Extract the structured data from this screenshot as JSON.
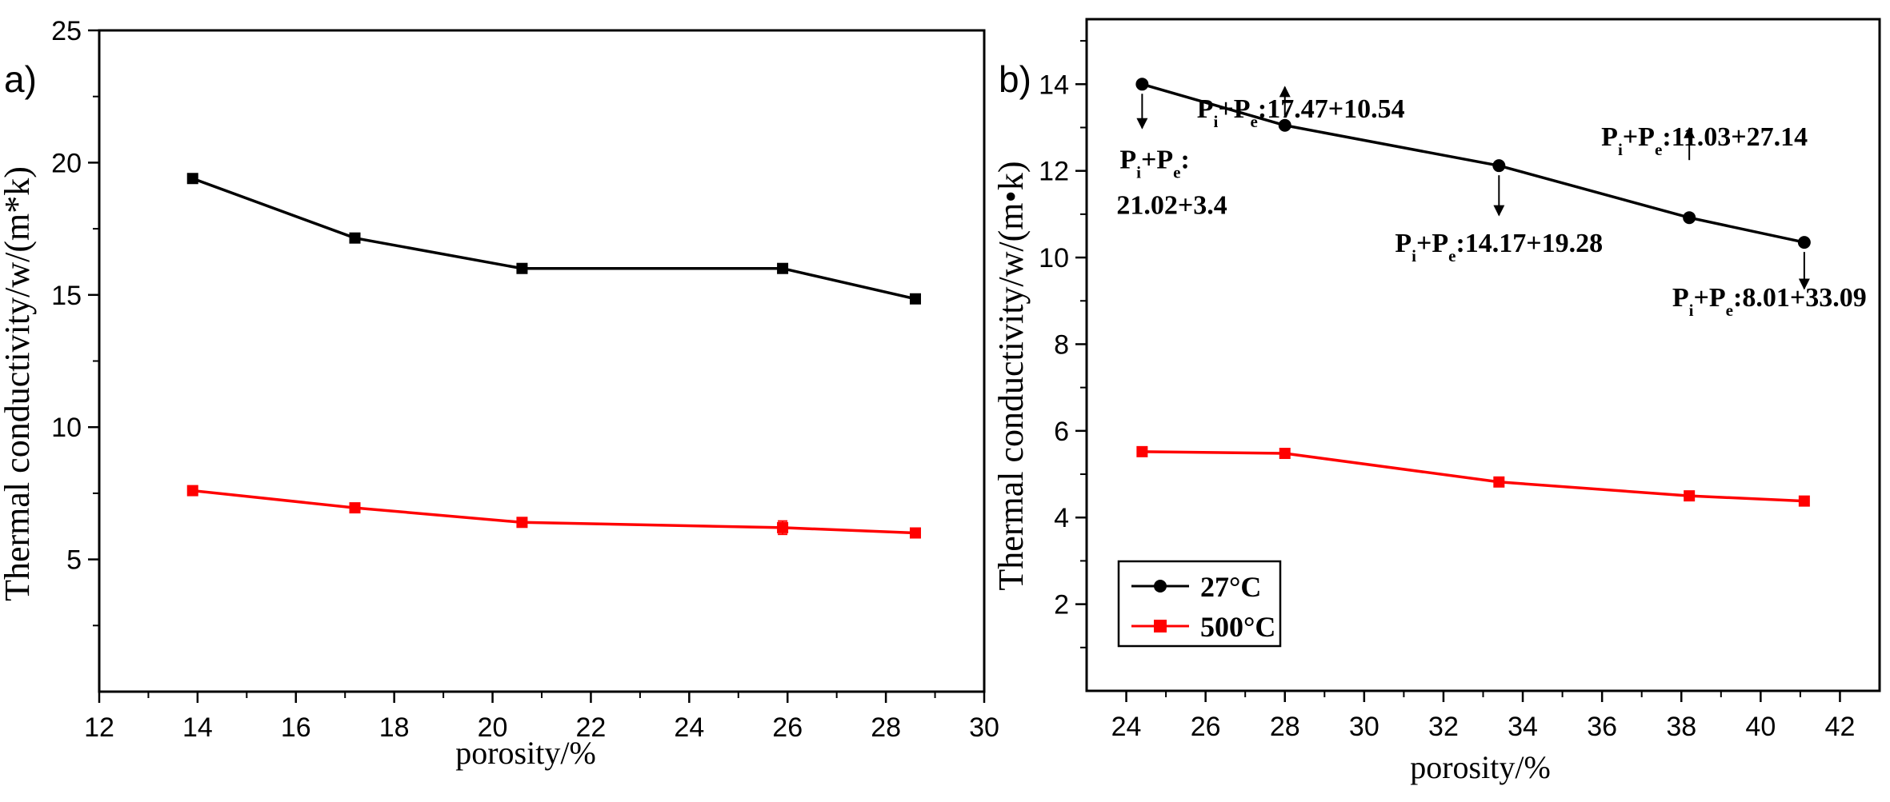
{
  "chart_data": [
    {
      "panel_label": "a)",
      "type": "line",
      "xlabel": "porosity/%",
      "ylabel": "Thermal conductivity/w/(m*k)",
      "xlim": [
        12,
        30
      ],
      "ylim": [
        0,
        25
      ],
      "x_ticks": [
        "12",
        "14",
        "16",
        "18",
        "20",
        "22",
        "24",
        "26",
        "28",
        "30"
      ],
      "y_ticks": [
        "5",
        "10",
        "15",
        "20",
        "25"
      ],
      "grid": false,
      "series": [
        {
          "color": "#000000",
          "marker": "square",
          "x": [
            13.9,
            17.2,
            20.6,
            25.9,
            28.6
          ],
          "y": [
            19.4,
            17.15,
            16.0,
            16.0,
            14.85
          ],
          "err": [
            0.15,
            0.15,
            0.12,
            0.12,
            0.15
          ]
        },
        {
          "color": "#ff0000",
          "marker": "square",
          "x": [
            13.9,
            17.2,
            20.6,
            25.9,
            28.6
          ],
          "y": [
            7.6,
            6.95,
            6.4,
            6.2,
            6.0
          ],
          "err": [
            0.12,
            0.12,
            0.12,
            0.25,
            0.12
          ]
        }
      ]
    },
    {
      "panel_label": "b)",
      "type": "line",
      "xlabel": "porosity/%",
      "ylabel": "Thermal conductivity/w/(m•k)",
      "xlim": [
        23,
        43
      ],
      "ylim": [
        0,
        15.5
      ],
      "x_ticks": [
        "24",
        "26",
        "28",
        "30",
        "32",
        "34",
        "36",
        "38",
        "40",
        "42"
      ],
      "y_ticks": [
        "2",
        "4",
        "6",
        "8",
        "10",
        "12",
        "14"
      ],
      "grid": false,
      "legend_position": "bottom-left",
      "series": [
        {
          "name": "27°C",
          "color": "#000000",
          "marker": "circle",
          "x": [
            24.4,
            28.0,
            33.4,
            38.2,
            41.1
          ],
          "y": [
            14.0,
            13.05,
            12.12,
            10.92,
            10.35
          ]
        },
        {
          "name": "500°C",
          "color": "#ff0000",
          "marker": "square",
          "x": [
            24.4,
            28.0,
            33.4,
            38.2,
            41.1
          ],
          "y": [
            5.52,
            5.48,
            4.82,
            4.5,
            4.38
          ]
        }
      ],
      "annotations": [
        {
          "line1": "Pi+Pe:",
          "line2": "21.02+3.4",
          "point_x": 24.4,
          "point_y": 14.0,
          "arrow": "down"
        },
        {
          "text": "Pi+Pe:17.47+10.54",
          "point_x": 28.0,
          "point_y": 13.05,
          "arrow": "up"
        },
        {
          "text": "Pi+Pe:14.17+19.28",
          "point_x": 33.4,
          "point_y": 12.12,
          "arrow": "down"
        },
        {
          "text": "Pi+Pe:11.03+27.14",
          "point_x": 38.2,
          "point_y": 10.92,
          "arrow": "up"
        },
        {
          "text": "Pi+Pe:8.01+33.09",
          "point_x": 41.1,
          "point_y": 10.35,
          "arrow": "down"
        }
      ]
    }
  ]
}
